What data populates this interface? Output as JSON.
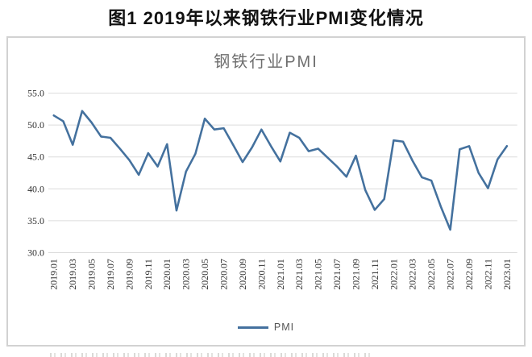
{
  "figure_title": "图1  2019年以来钢铁行业PMI变化情况",
  "chart_data": {
    "type": "line",
    "title": "钢铁行业PMI",
    "legend": "PMI",
    "legend_position": "bottom",
    "grid": true,
    "ylim": [
      30.0,
      55.0
    ],
    "yticks": [
      "55.0",
      "50.0",
      "45.0",
      "40.0",
      "35.0",
      "30.0"
    ],
    "xticks": [
      "2019.01",
      "2019.03",
      "2019.05",
      "2019.07",
      "2019.09",
      "2019.11",
      "2020.01",
      "2020.03",
      "2020.05",
      "2020.07",
      "2020.09",
      "2020.11",
      "2021.01",
      "2021.03",
      "2021.05",
      "2021.07",
      "2021.09",
      "2021.11",
      "2022.01",
      "2022.03",
      "2022.05",
      "2022.07",
      "2022.09",
      "2022.11",
      "2023.01"
    ],
    "x": [
      "2019.01",
      "2019.02",
      "2019.03",
      "2019.04",
      "2019.05",
      "2019.06",
      "2019.07",
      "2019.08",
      "2019.09",
      "2019.10",
      "2019.11",
      "2019.12",
      "2020.01",
      "2020.02",
      "2020.03",
      "2020.04",
      "2020.05",
      "2020.06",
      "2020.07",
      "2020.08",
      "2020.09",
      "2020.10",
      "2020.11",
      "2020.12",
      "2021.01",
      "2021.02",
      "2021.03",
      "2021.04",
      "2021.05",
      "2021.06",
      "2021.07",
      "2021.08",
      "2021.09",
      "2021.10",
      "2021.11",
      "2021.12",
      "2022.01",
      "2022.02",
      "2022.03",
      "2022.04",
      "2022.05",
      "2022.06",
      "2022.07",
      "2022.08",
      "2022.09",
      "2022.10",
      "2022.11",
      "2022.12",
      "2023.01"
    ],
    "series": [
      {
        "name": "PMI",
        "values": [
          51.5,
          50.6,
          46.9,
          52.2,
          50.4,
          48.2,
          48.0,
          46.3,
          44.5,
          42.2,
          45.6,
          43.5,
          47.0,
          36.6,
          42.7,
          45.5,
          51.0,
          49.3,
          49.5,
          46.9,
          44.2,
          46.5,
          49.3,
          46.7,
          44.3,
          48.8,
          48.0,
          45.9,
          46.3,
          44.9,
          43.5,
          41.9,
          45.2,
          39.8,
          36.7,
          38.4,
          47.6,
          47.4,
          44.4,
          41.8,
          41.3,
          37.2,
          33.6,
          46.2,
          46.7,
          42.5,
          40.1,
          44.6,
          46.7
        ]
      }
    ],
    "line_color": "#44719e",
    "gridline_color": "#dcdcdc"
  }
}
